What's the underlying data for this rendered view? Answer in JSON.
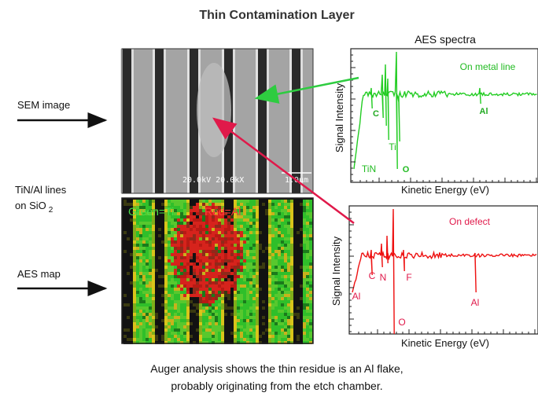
{
  "title": "Thin Contamination Layer",
  "left_labels": {
    "sem": "SEM image",
    "lines": "TiN/Al lines",
    "lines_on": "on SiO",
    "lines_sub": "2",
    "map": "AES map"
  },
  "sem_image": {
    "info": "20.0kV 20.0kX",
    "scale": "1.0μm"
  },
  "aes_map": {
    "legend_ti": "Green=Ti",
    "legend_al": "Red=Al"
  },
  "spectra": {
    "title": "AES spectra",
    "panels": [
      {
        "label": "On metal line",
        "y_axis": "Signal Intensity",
        "x_axis": "Kinetic Energy (eV)",
        "peaks": [
          "C",
          "Ti",
          "TiN",
          "O",
          "Al"
        ]
      },
      {
        "label": "On defect",
        "y_axis": "Signal Intensity",
        "x_axis": "Kinetic Energy (eV)",
        "peaks": [
          "Al",
          "C",
          "N",
          "F",
          "O",
          "Al"
        ]
      }
    ]
  },
  "caption": [
    "Auger analysis shows the thin residue is an Al flake,",
    "probably originating from the etch chamber."
  ]
}
